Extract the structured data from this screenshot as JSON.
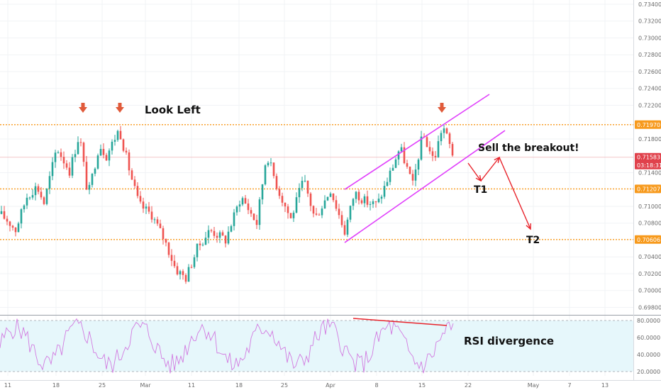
{
  "chart_data": [
    {
      "type": "candlestick",
      "title": "",
      "price_axis": {
        "ticks": [
          "0.73400",
          "0.73200",
          "0.73000",
          "0.72800",
          "0.72600",
          "0.72400",
          "0.72200",
          "0.71800",
          "0.71400",
          "0.71000",
          "0.70800",
          "0.70400",
          "0.70200",
          "0.70000",
          "0.69800"
        ],
        "ylim": [
          0.6972,
          0.7345
        ]
      },
      "time_axis": {
        "ticks": [
          "11",
          "18",
          "25",
          "Mar",
          "11",
          "18",
          "25",
          "Apr",
          "8",
          "15",
          "22",
          "May",
          "7",
          "13"
        ]
      },
      "price_tags": [
        {
          "label": "0.71970",
          "value": 0.7197,
          "color": "#f79a1d"
        },
        {
          "label": "0.71583",
          "value": 0.71583,
          "color": "#e0414b"
        },
        {
          "label": "03:18:31",
          "value": 0.7149,
          "color": "#e0414b"
        },
        {
          "label": "0.71207",
          "value": 0.71207,
          "color": "#f79a1d"
        },
        {
          "label": "0.70606",
          "value": 0.70606,
          "color": "#f79a1d"
        }
      ],
      "horizontal_levels": [
        0.7197,
        0.71207,
        0.70606
      ],
      "last_price": 0.71583,
      "channel": {
        "upper": [
          [
            0.712,
            0.7233
          ]
        ],
        "lower": [
          [
            0.7057,
            0.719
          ]
        ]
      },
      "colors": {
        "up": "#26a69a",
        "down": "#ef5350",
        "levels": "#f79a1d",
        "channel": "#e040fb",
        "arrows": "#e8232b",
        "markers": "#e05a3a"
      },
      "annotations": {
        "look_left": "Look Left",
        "sell": "Sell the breakout!",
        "t1": "T1",
        "t2": "T2"
      }
    },
    {
      "type": "line",
      "title": "RSI",
      "ylim": [
        15,
        85
      ],
      "ticks": [
        "80.0000",
        "60.0000",
        "40.0000",
        "20.0000"
      ],
      "bands": [
        20,
        80
      ],
      "annotation": "RSI divergence",
      "colors": {
        "line": "#d27ae0",
        "background": "#e6f7fb",
        "divergence": "#e8232b"
      }
    }
  ]
}
